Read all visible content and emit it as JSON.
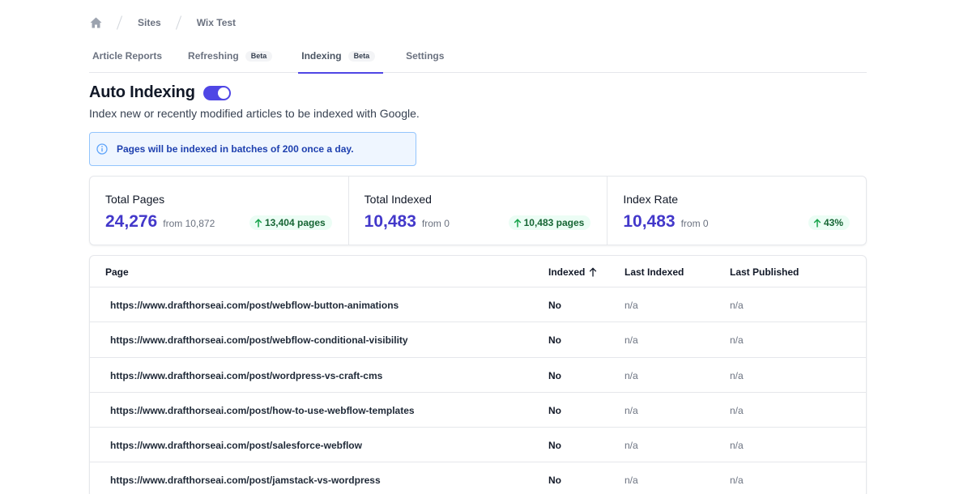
{
  "breadcrumb": {
    "home_icon": "home-icon",
    "items": [
      "Sites",
      "Wix Test"
    ]
  },
  "tabs": [
    {
      "label": "Article Reports",
      "badge": null
    },
    {
      "label": "Refreshing",
      "badge": "Beta"
    },
    {
      "label": "Indexing",
      "badge": "Beta",
      "active": true
    },
    {
      "label": "Settings",
      "badge": null
    }
  ],
  "header": {
    "title": "Auto Indexing",
    "toggle_on": true,
    "subtitle": "Index new or recently modified articles to be indexed with Google."
  },
  "info": {
    "icon": "info-icon",
    "text": "Pages will be indexed in batches of 200 once a day."
  },
  "stats": [
    {
      "label": "Total Pages",
      "value": "24,276",
      "from": "from 10,872",
      "delta": "13,404 pages"
    },
    {
      "label": "Total Indexed",
      "value": "10,483",
      "from": "from 0",
      "delta": "10,483 pages"
    },
    {
      "label": "Index Rate",
      "value": "10,483",
      "from": "from 0",
      "delta": "43%"
    }
  ],
  "table": {
    "headers": {
      "page": "Page",
      "indexed": "Indexed",
      "last_indexed": "Last Indexed",
      "last_published": "Last Published"
    },
    "rows": [
      {
        "url": "https://www.drafthorseai.com/post/webflow-button-animations",
        "indexed": "No",
        "last_indexed": "n/a",
        "last_published": "n/a"
      },
      {
        "url": "https://www.drafthorseai.com/post/webflow-conditional-visibility",
        "indexed": "No",
        "last_indexed": "n/a",
        "last_published": "n/a"
      },
      {
        "url": "https://www.drafthorseai.com/post/wordpress-vs-craft-cms",
        "indexed": "No",
        "last_indexed": "n/a",
        "last_published": "n/a"
      },
      {
        "url": "https://www.drafthorseai.com/post/how-to-use-webflow-templates",
        "indexed": "No",
        "last_indexed": "n/a",
        "last_published": "n/a"
      },
      {
        "url": "https://www.drafthorseai.com/post/salesforce-webflow",
        "indexed": "No",
        "last_indexed": "n/a",
        "last_published": "n/a"
      },
      {
        "url": "https://www.drafthorseai.com/post/jamstack-vs-wordpress",
        "indexed": "No",
        "last_indexed": "n/a",
        "last_published": "n/a"
      }
    ]
  },
  "colors": {
    "accent": "#4f46e5",
    "info_bg": "#eff6ff",
    "info_text": "#1e40af",
    "delta_bg": "#ecfdf5",
    "delta_text": "#166534"
  }
}
